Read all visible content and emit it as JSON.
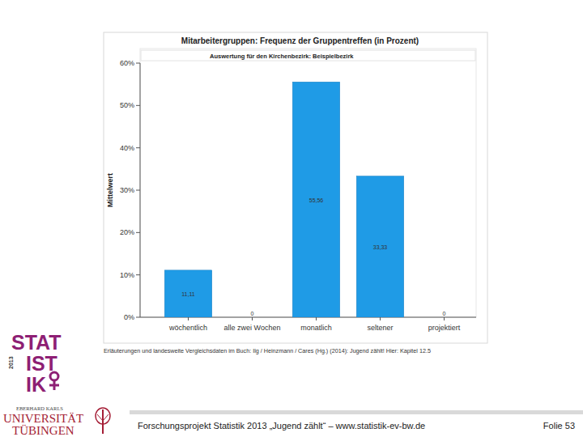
{
  "chart_data": {
    "type": "bar",
    "title": "Mitarbeitergruppen: Frequenz der Gruppentreffen (in Prozent)",
    "subtitle": "Auswertung für den Kirchenbezirk: Beispielbezirk",
    "y_label": "Mittelwert",
    "footnote": "Erläuterungen und landesweite Vergleichsdaten im Buch: Ilg / Heinzmann / Cares (Hg.) (2014): Jugend zählt! Hier: Kapitel 12.5",
    "categories": [
      "wöchentlich",
      "alle zwei Wochen",
      "monatlich",
      "seltener",
      "projektiert"
    ],
    "values": [
      11.11,
      0,
      55.56,
      33.33,
      0
    ],
    "value_labels": [
      "11,11",
      "0",
      "55,56",
      "33,33",
      "0"
    ],
    "data_labels": true,
    "color": "#1f9be6",
    "ylim": [
      0,
      60
    ],
    "yticks": [
      {
        "value": 0,
        "label": "0%"
      },
      {
        "value": 10,
        "label": "10%"
      },
      {
        "value": 20,
        "label": "20%"
      },
      {
        "value": 30,
        "label": "30%"
      },
      {
        "value": 40,
        "label": "40%"
      },
      {
        "value": 50,
        "label": "50%"
      },
      {
        "value": 60,
        "label": "60%"
      }
    ],
    "grid": false
  },
  "slide": {
    "footer": "Forschungsprojekt Statistik 2013 „Jugend zählt“ – www.statistik-ev-bw.de",
    "page": "Folie 53",
    "logo_lines": [
      "STAT",
      "IST",
      "IK"
    ],
    "logo_year": "2013",
    "university": [
      "EBERHARD KARLS",
      "UNIVERSITÄT",
      "TÜBINGEN"
    ]
  }
}
